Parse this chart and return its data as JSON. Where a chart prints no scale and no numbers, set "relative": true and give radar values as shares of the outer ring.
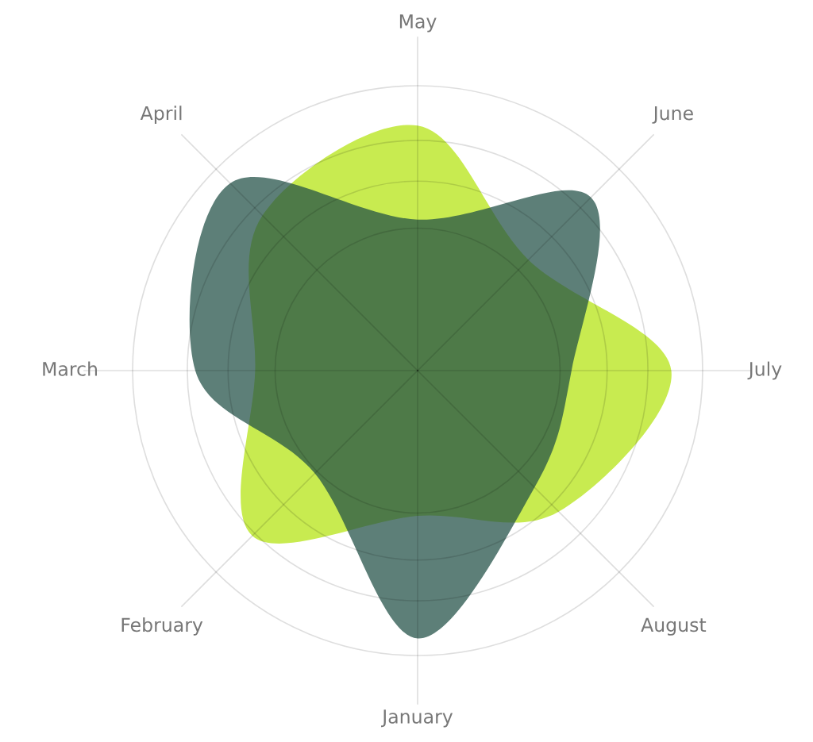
{
  "chart_data": {
    "type": "radar",
    "relative": true,
    "grid": true,
    "legend": false,
    "categories": [
      "May",
      "June",
      "July",
      "August",
      "January",
      "February",
      "March",
      "April"
    ],
    "series": [
      {
        "color": "#c8eb50",
        "values": [
          0.86,
          0.55,
          0.89,
          0.7,
          0.51,
          0.82,
          0.57,
          0.77
        ]
      },
      {
        "color": "#214f46",
        "values": [
          0.53,
          0.86,
          0.54,
          0.58,
          0.94,
          0.51,
          0.78,
          0.93
        ]
      }
    ]
  }
}
